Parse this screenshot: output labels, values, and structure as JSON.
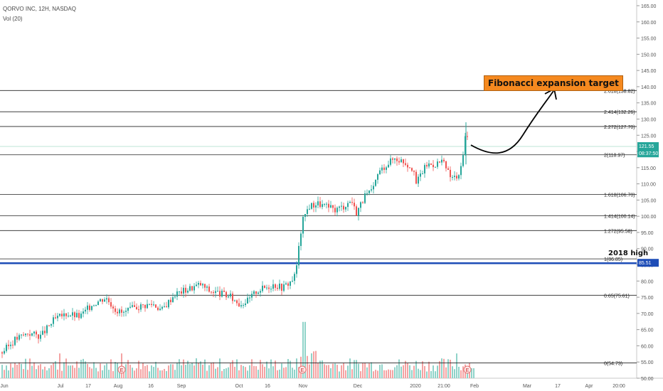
{
  "header": {
    "symbol_line": "QORVO INC, 12H, NASDAQ",
    "volume_label": "Vol (20)"
  },
  "annotations": {
    "target_note": "Fibonacci expansion target",
    "high_label": "2018 high"
  },
  "chart_data": {
    "type": "candlestick",
    "price_scale": {
      "min": 50,
      "max": 165,
      "ticks": [
        50,
        55,
        60,
        65,
        70,
        75,
        80,
        85,
        90,
        95,
        100,
        105,
        110,
        115,
        120,
        125,
        130,
        135,
        140,
        145,
        150,
        155,
        160,
        165
      ]
    },
    "x_labels": [
      "Jun",
      "Jul",
      "17",
      "Aug",
      "16",
      "Sep",
      "Oct",
      "16",
      "Nov",
      "Dec",
      "2020",
      "21:00",
      "Feb",
      "Mar",
      "17",
      "Apr",
      "20:00"
    ],
    "fib_levels": [
      {
        "label": "2.618(138.82)",
        "value": 138.82
      },
      {
        "label": "2.414(132.26)",
        "value": 132.26
      },
      {
        "label": "2.272(127.70)",
        "value": 127.7
      },
      {
        "label": "2(118.97)",
        "value": 118.97
      },
      {
        "label": "1.618(106.70)",
        "value": 106.7
      },
      {
        "label": "1.414(100.14)",
        "value": 100.14
      },
      {
        "label": "1.272(95.58)",
        "value": 95.58
      },
      {
        "label": "1(86.85)",
        "value": 86.85
      },
      {
        "label": "0.65(75.61)",
        "value": 75.61
      },
      {
        "label": "0(54.73)",
        "value": 54.73
      }
    ],
    "price_tags": [
      {
        "text": "121.55",
        "value": 121.55,
        "color": "#26a69a"
      },
      {
        "text": "08:37:50",
        "value": 119.3,
        "color": "#26a69a"
      },
      {
        "text": "85.51",
        "value": 85.51,
        "color": "#1e4db7"
      }
    ],
    "horizontal_line": {
      "value": 85.51,
      "color": "#1e4db7"
    },
    "price_path": [
      [
        0,
        58
      ],
      [
        0.03,
        62
      ],
      [
        0.06,
        64
      ],
      [
        0.09,
        63
      ],
      [
        0.12,
        68
      ],
      [
        0.15,
        70
      ],
      [
        0.18,
        69
      ],
      [
        0.21,
        73
      ],
      [
        0.24,
        75
      ],
      [
        0.265,
        71
      ],
      [
        0.28,
        70
      ],
      [
        0.31,
        72
      ],
      [
        0.35,
        73
      ],
      [
        0.37,
        71
      ],
      [
        0.4,
        76
      ],
      [
        0.44,
        78
      ],
      [
        0.46,
        79
      ],
      [
        0.48,
        77
      ],
      [
        0.51,
        76
      ],
      [
        0.53,
        75
      ],
      [
        0.55,
        73
      ],
      [
        0.57,
        74
      ],
      [
        0.59,
        77
      ],
      [
        0.61,
        78
      ],
      [
        0.63,
        79
      ],
      [
        0.65,
        78
      ],
      [
        0.67,
        80
      ],
      [
        0.68,
        82
      ],
      [
        0.695,
        98
      ],
      [
        0.71,
        103
      ],
      [
        0.73,
        104
      ],
      [
        0.75,
        103
      ],
      [
        0.77,
        102
      ],
      [
        0.79,
        103
      ],
      [
        0.81,
        105
      ],
      [
        0.82,
        101
      ],
      [
        0.84,
        106
      ],
      [
        0.86,
        108
      ],
      [
        0.87,
        113
      ],
      [
        0.89,
        116
      ],
      [
        0.91,
        118
      ],
      [
        0.93,
        117
      ],
      [
        0.95,
        115
      ],
      [
        0.96,
        110
      ],
      [
        0.97,
        113
      ],
      [
        0.985,
        116
      ],
      [
        1.0,
        116
      ],
      [
        1.02,
        117
      ],
      [
        1.04,
        112
      ],
      [
        1.06,
        112
      ],
      [
        1.075,
        126
      ],
      [
        1.085,
        121
      ]
    ],
    "volume_scale": {
      "min": 0,
      "max": 25
    },
    "earnings_markers": [
      "E",
      "E",
      "E"
    ]
  }
}
